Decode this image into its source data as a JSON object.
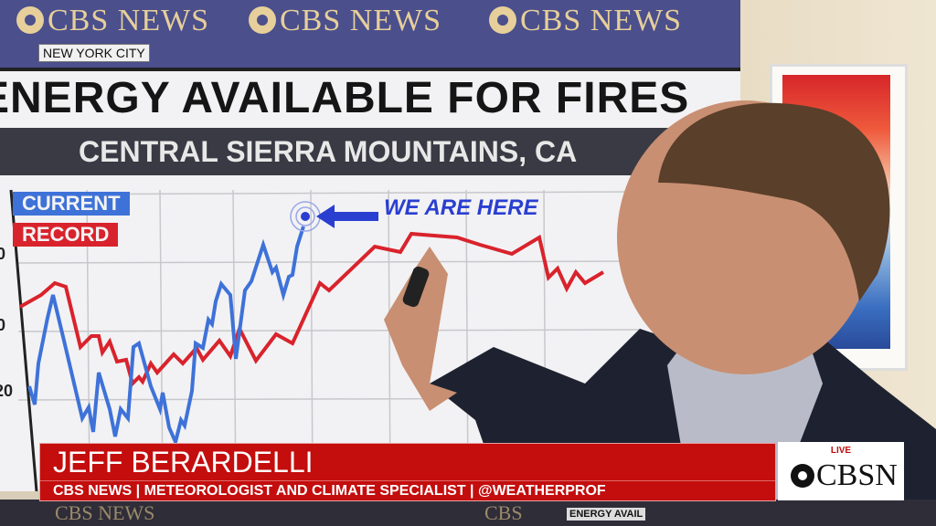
{
  "backdrop": {
    "logos": [
      "CBS NEWS",
      "CBS NEWS",
      "CBS NEWS"
    ],
    "location": "NEW YORK CITY"
  },
  "screen": {
    "title": "ENERGY AVAILABLE FOR FIRES",
    "subtitle": "CENTRAL SIERRA MOUNTAINS, CA",
    "legend": {
      "current": "CURRENT",
      "record": "RECORD"
    },
    "annotation": "WE ARE HERE",
    "y_ticks": [
      "0",
      "0",
      "20"
    ],
    "colors": {
      "current": "#3e72d8",
      "record": "#d9232c"
    }
  },
  "lower_third": {
    "name": "JEFF BERARDELLI",
    "role": "CBS NEWS | METEOROLOGIST AND CLIMATE SPECIALIST | @WEATHERPROF",
    "bug_live": "LIVE",
    "bug_brand": "CBSN",
    "accent": "#c40d0d"
  },
  "monitor_preview": {
    "logo": "CBS NEWS",
    "logo2": "CBS",
    "text": "ENERGY AVAIL"
  }
}
